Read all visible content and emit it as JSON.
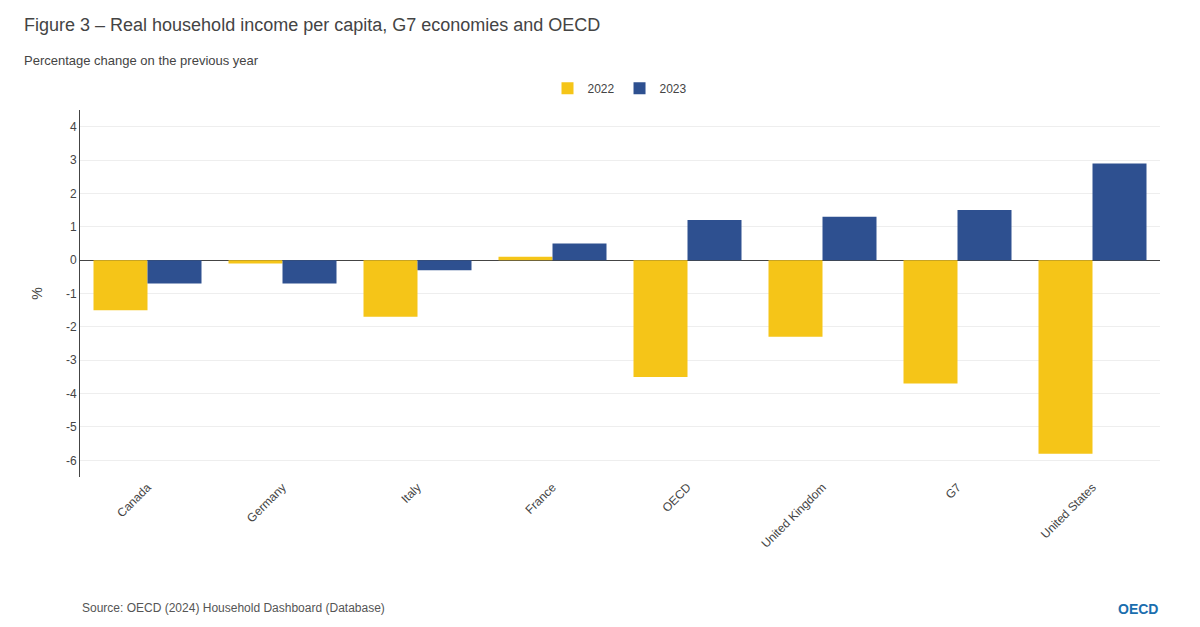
{
  "chart_data": {
    "type": "bar",
    "title": "Figure 3 – Real household income per capita, G7 economies and OECD",
    "subtitle": "Percentage change on the previous year",
    "categories": [
      "Canada",
      "Germany",
      "Italy",
      "France",
      "OECD",
      "United Kingdom",
      "G7",
      "United States"
    ],
    "series": [
      {
        "name": "2022",
        "color": "#F5C518",
        "values": [
          -1.5,
          -0.1,
          -1.7,
          0.1,
          -3.5,
          -2.3,
          -3.7,
          -5.8
        ]
      },
      {
        "name": "2023",
        "color": "#2E5090",
        "values": [
          -0.7,
          -0.7,
          -0.3,
          0.5,
          1.2,
          1.3,
          1.5,
          2.9
        ]
      }
    ],
    "ylabel": "%",
    "ylim": [
      -6.5,
      4.5
    ],
    "yticks": [
      -6,
      -5,
      -4,
      -3,
      -2,
      -1,
      0,
      1,
      2,
      3,
      4
    ],
    "grid": true,
    "legend": "top",
    "annotations": [
      "Source: OECD (2024) Household Dashboard (Database)",
      "OECD"
    ]
  }
}
